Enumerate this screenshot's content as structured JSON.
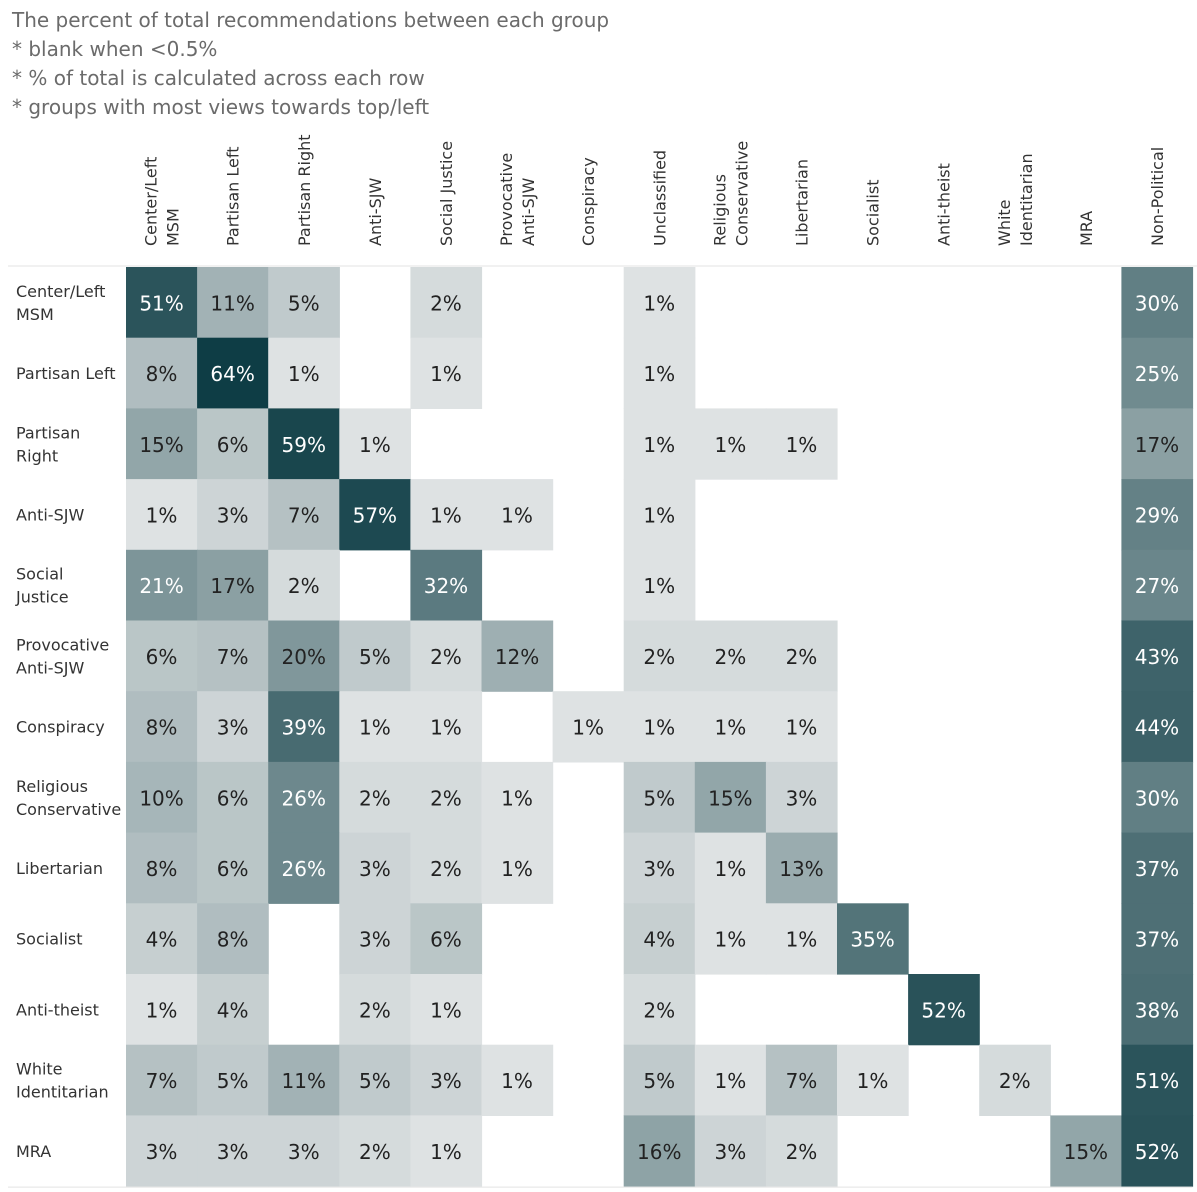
{
  "notes": [
    "The percent of total recommendations between each group",
    "* blank when <0.5%",
    "* % of total is calculated across each row",
    "* groups with most views towards top/left"
  ],
  "chart_data": {
    "type": "heatmap",
    "title": "The percent of total recommendations between each group",
    "columns": [
      [
        "Center/Left",
        "MSM"
      ],
      [
        "Partisan Left"
      ],
      [
        "Partisan Right"
      ],
      [
        "Anti-SJW"
      ],
      [
        "Social Justice"
      ],
      [
        "Provocative",
        "Anti-SJW"
      ],
      [
        "Conspiracy"
      ],
      [
        "Unclassified"
      ],
      [
        "Religious",
        "Conservative"
      ],
      [
        "Libertarian"
      ],
      [
        "Socialist"
      ],
      [
        "Anti-theist"
      ],
      [
        "White",
        "Identitarian"
      ],
      [
        "MRA"
      ],
      [
        "Non-Political"
      ]
    ],
    "rows": [
      {
        "label": [
          "Center/Left",
          "MSM"
        ],
        "values": [
          51,
          11,
          5,
          null,
          2,
          null,
          null,
          1,
          null,
          null,
          null,
          null,
          null,
          null,
          30
        ]
      },
      {
        "label": [
          "Partisan Left"
        ],
        "values": [
          8,
          64,
          1,
          null,
          1,
          null,
          null,
          1,
          null,
          null,
          null,
          null,
          null,
          null,
          25
        ]
      },
      {
        "label": [
          "Partisan",
          "Right"
        ],
        "values": [
          15,
          6,
          59,
          1,
          null,
          null,
          null,
          1,
          1,
          1,
          null,
          null,
          null,
          null,
          17
        ]
      },
      {
        "label": [
          "Anti-SJW"
        ],
        "values": [
          1,
          3,
          7,
          57,
          1,
          1,
          null,
          1,
          null,
          null,
          null,
          null,
          null,
          null,
          29
        ]
      },
      {
        "label": [
          "Social",
          "Justice"
        ],
        "values": [
          21,
          17,
          2,
          null,
          32,
          null,
          null,
          1,
          null,
          null,
          null,
          null,
          null,
          null,
          27
        ]
      },
      {
        "label": [
          "Provocative",
          "Anti-SJW"
        ],
        "values": [
          6,
          7,
          20,
          5,
          2,
          12,
          null,
          2,
          2,
          2,
          null,
          null,
          null,
          null,
          43
        ]
      },
      {
        "label": [
          "Conspiracy"
        ],
        "values": [
          8,
          3,
          39,
          1,
          1,
          null,
          1,
          1,
          1,
          1,
          null,
          null,
          null,
          null,
          44
        ]
      },
      {
        "label": [
          "Religious",
          "Conservative"
        ],
        "values": [
          10,
          6,
          26,
          2,
          2,
          1,
          null,
          5,
          15,
          3,
          null,
          null,
          null,
          null,
          30
        ]
      },
      {
        "label": [
          "Libertarian"
        ],
        "values": [
          8,
          6,
          26,
          3,
          2,
          1,
          null,
          3,
          1,
          13,
          null,
          null,
          null,
          null,
          37
        ]
      },
      {
        "label": [
          "Socialist"
        ],
        "values": [
          4,
          8,
          null,
          3,
          6,
          null,
          null,
          4,
          1,
          1,
          35,
          null,
          null,
          null,
          37
        ]
      },
      {
        "label": [
          "Anti-theist"
        ],
        "values": [
          1,
          4,
          null,
          2,
          1,
          null,
          null,
          2,
          null,
          null,
          null,
          52,
          null,
          null,
          38
        ]
      },
      {
        "label": [
          "White",
          "Identitarian"
        ],
        "values": [
          7,
          5,
          11,
          5,
          3,
          1,
          null,
          5,
          1,
          7,
          1,
          null,
          2,
          null,
          51
        ]
      },
      {
        "label": [
          "MRA"
        ],
        "values": [
          3,
          3,
          3,
          2,
          1,
          null,
          null,
          16,
          3,
          2,
          null,
          null,
          null,
          15,
          52
        ]
      }
    ],
    "value_suffix": "%",
    "colors": {
      "low": "#f1f1f1",
      "high": "#0e3d45"
    }
  }
}
